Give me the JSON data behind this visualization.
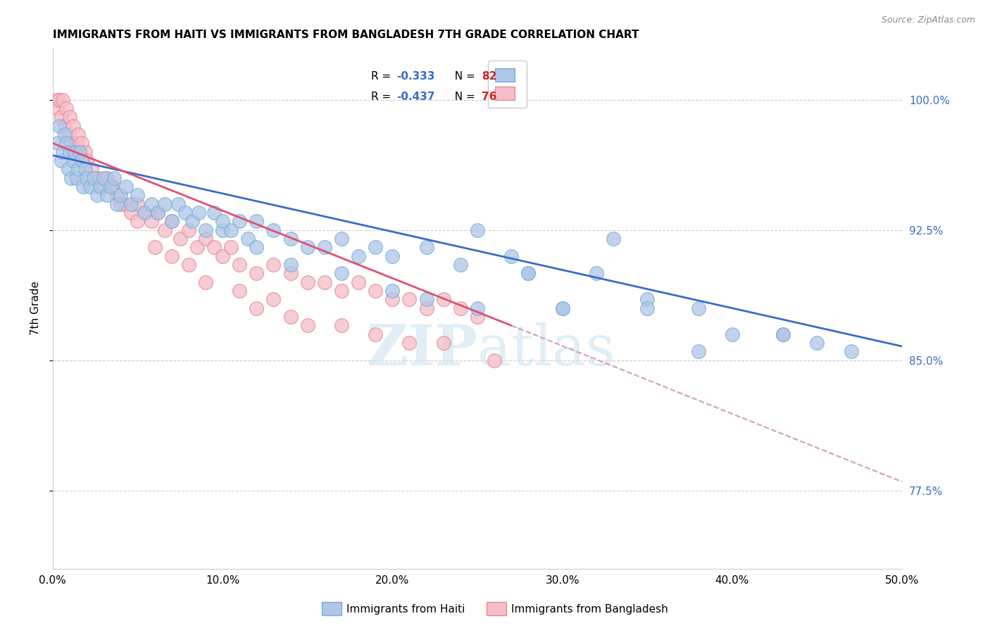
{
  "title": "IMMIGRANTS FROM HAITI VS IMMIGRANTS FROM BANGLADESH 7TH GRADE CORRELATION CHART",
  "source": "Source: ZipAtlas.com",
  "ylabel": "7th Grade",
  "x_tick_values": [
    0.0,
    10.0,
    20.0,
    30.0,
    40.0,
    50.0
  ],
  "y_tick_values": [
    77.5,
    85.0,
    92.5,
    100.0
  ],
  "xlim": [
    0.0,
    50.0
  ],
  "ylim": [
    73.0,
    103.0
  ],
  "haiti_color": "#aec6e8",
  "haiti_edge_color": "#7bafd4",
  "bangladesh_color": "#f5bdc8",
  "bangladesh_edge_color": "#e8889a",
  "legend_R_color": "#3a6cc8",
  "legend_N_color": "#cc2222",
  "regression_line_color_haiti": "#3a6cc8",
  "regression_line_color_bangladesh": "#e05070",
  "regression_dashed_color": "#d0a0b0",
  "watermark_color": "#cde4f0",
  "legend_label_haiti": "Immigrants from Haiti",
  "legend_label_bangladesh": "Immigrants from Bangladesh",
  "haiti_R": -0.333,
  "haiti_N": 82,
  "bangladesh_R": -0.437,
  "bangladesh_N": 76,
  "haiti_line_x0": 0.0,
  "haiti_line_y0": 96.8,
  "haiti_line_x1": 50.0,
  "haiti_line_y1": 85.8,
  "bangladesh_line_x0": 0.0,
  "bangladesh_line_y0": 97.5,
  "bangladesh_line_x1": 27.0,
  "bangladesh_line_y1": 87.0,
  "bangladesh_dash_x0": 27.0,
  "bangladesh_dash_y0": 87.0,
  "bangladesh_dash_x1": 50.0,
  "bangladesh_dash_y1": 78.0,
  "haiti_x": [
    0.3,
    0.4,
    0.5,
    0.6,
    0.7,
    0.8,
    0.9,
    1.0,
    1.1,
    1.2,
    1.3,
    1.4,
    1.5,
    1.6,
    1.7,
    1.8,
    1.9,
    2.0,
    2.2,
    2.4,
    2.6,
    2.8,
    3.0,
    3.2,
    3.4,
    3.6,
    3.8,
    4.0,
    4.3,
    4.6,
    5.0,
    5.4,
    5.8,
    6.2,
    6.6,
    7.0,
    7.4,
    7.8,
    8.2,
    8.6,
    9.0,
    9.5,
    10.0,
    10.5,
    11.0,
    11.5,
    12.0,
    13.0,
    14.0,
    15.0,
    16.0,
    17.0,
    18.0,
    19.0,
    20.0,
    22.0,
    24.0,
    25.0,
    27.0,
    28.0,
    30.0,
    32.0,
    33.0,
    35.0,
    38.0,
    40.0,
    43.0,
    45.0,
    47.0,
    10.0,
    12.0,
    14.0,
    17.0,
    20.0,
    22.0,
    25.0,
    28.0,
    30.0,
    35.0,
    38.0,
    43.0
  ],
  "haiti_y": [
    97.5,
    98.5,
    96.5,
    97.0,
    98.0,
    97.5,
    96.0,
    97.0,
    95.5,
    96.5,
    97.0,
    95.5,
    96.0,
    97.0,
    96.5,
    95.0,
    96.0,
    95.5,
    95.0,
    95.5,
    94.5,
    95.0,
    95.5,
    94.5,
    95.0,
    95.5,
    94.0,
    94.5,
    95.0,
    94.0,
    94.5,
    93.5,
    94.0,
    93.5,
    94.0,
    93.0,
    94.0,
    93.5,
    93.0,
    93.5,
    92.5,
    93.5,
    92.5,
    92.5,
    93.0,
    92.0,
    93.0,
    92.5,
    92.0,
    91.5,
    91.5,
    92.0,
    91.0,
    91.5,
    91.0,
    91.5,
    90.5,
    92.5,
    91.0,
    90.0,
    88.0,
    90.0,
    92.0,
    88.5,
    85.5,
    86.5,
    86.5,
    86.0,
    85.5,
    93.0,
    91.5,
    90.5,
    90.0,
    89.0,
    88.5,
    88.0,
    90.0,
    88.0,
    88.0,
    88.0,
    86.5
  ],
  "bangladesh_x": [
    0.2,
    0.3,
    0.4,
    0.5,
    0.6,
    0.7,
    0.8,
    0.9,
    1.0,
    1.1,
    1.2,
    1.3,
    1.4,
    1.5,
    1.6,
    1.7,
    1.8,
    1.9,
    2.0,
    2.3,
    2.6,
    2.9,
    3.2,
    3.5,
    3.8,
    4.2,
    4.6,
    5.0,
    5.4,
    5.8,
    6.2,
    6.6,
    7.0,
    7.5,
    8.0,
    8.5,
    9.0,
    9.5,
    10.0,
    10.5,
    11.0,
    12.0,
    13.0,
    14.0,
    15.0,
    16.0,
    17.0,
    18.0,
    19.0,
    20.0,
    21.0,
    22.0,
    23.0,
    24.0,
    25.0,
    3.5,
    4.0,
    5.0,
    6.0,
    7.0,
    8.0,
    9.0,
    11.0,
    12.0,
    13.0,
    14.0,
    15.0,
    17.0,
    19.0,
    21.0,
    23.0,
    26.0
  ],
  "bangladesh_y": [
    100.0,
    99.5,
    100.0,
    99.0,
    100.0,
    98.5,
    99.5,
    98.0,
    99.0,
    97.5,
    98.5,
    97.0,
    97.5,
    98.0,
    97.0,
    97.5,
    96.5,
    97.0,
    96.5,
    96.0,
    95.5,
    95.0,
    95.5,
    95.0,
    94.5,
    94.0,
    93.5,
    94.0,
    93.5,
    93.0,
    93.5,
    92.5,
    93.0,
    92.0,
    92.5,
    91.5,
    92.0,
    91.5,
    91.0,
    91.5,
    90.5,
    90.0,
    90.5,
    90.0,
    89.5,
    89.5,
    89.0,
    89.5,
    89.0,
    88.5,
    88.5,
    88.0,
    88.5,
    88.0,
    87.5,
    95.0,
    94.0,
    93.0,
    91.5,
    91.0,
    90.5,
    89.5,
    89.0,
    88.0,
    88.5,
    87.5,
    87.0,
    87.0,
    86.5,
    86.0,
    86.0,
    85.0
  ]
}
